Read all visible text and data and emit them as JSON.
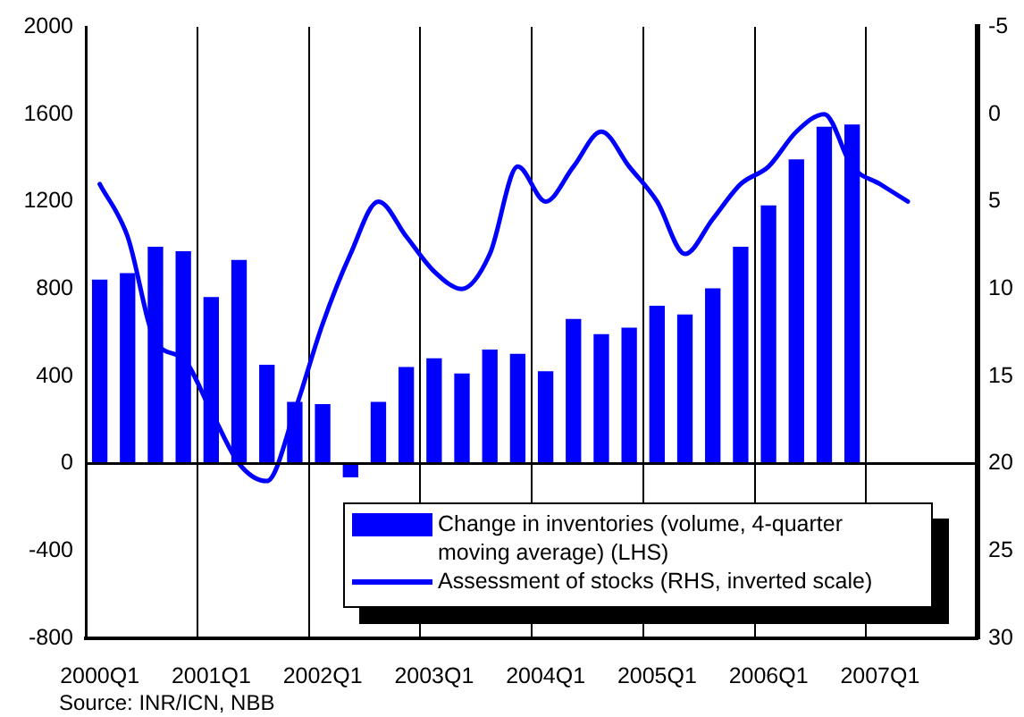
{
  "chart_data": {
    "type": "bar",
    "categories": [
      "2000Q1",
      null,
      null,
      null,
      "2001Q1",
      null,
      null,
      null,
      "2002Q1",
      null,
      null,
      null,
      "2003Q1",
      null,
      null,
      null,
      "2004Q1",
      null,
      null,
      null,
      "2005Q1",
      null,
      null,
      null,
      "2006Q1",
      null,
      null,
      null,
      "2007Q1",
      null,
      null,
      null
    ],
    "ylim": [
      -800,
      2000
    ],
    "yticks": [
      -800,
      -400,
      0,
      400,
      800,
      1200,
      1600,
      2000
    ],
    "y2lim": [
      30,
      -5
    ],
    "y2ticks": [
      -5,
      0,
      5,
      10,
      15,
      20,
      25,
      30
    ],
    "series": [
      {
        "name": "Change in inventories (volume, 4-quarter moving average) (LHS)",
        "color": "#0000ff",
        "values": [
          840,
          870,
          990,
          970,
          760,
          930,
          450,
          280,
          270,
          -60,
          280,
          440,
          480,
          410,
          520,
          500,
          420,
          660,
          590,
          620,
          720,
          680,
          800,
          990,
          1180,
          1390,
          1540,
          1550,
          null,
          null,
          null,
          null
        ]
      },
      {
        "name": "Assessment of stocks (RHS, inverted scale)",
        "type": "line",
        "axis": "y2",
        "color": "#0000ff",
        "values": [
          4,
          7,
          13,
          14,
          17,
          20,
          21,
          17,
          12,
          8,
          5,
          7,
          9,
          10,
          8,
          3,
          5,
          3,
          1,
          3,
          5,
          8,
          6,
          4,
          3,
          1,
          0,
          3,
          4,
          5,
          null,
          null
        ]
      }
    ],
    "ref_lines": [
      {
        "axis": "y",
        "value": 0,
        "color": "#000000"
      }
    ],
    "grid": "x",
    "legend": "bottom right",
    "marker": "none",
    "line_style": "solid",
    "annotations": [
      "Source: INR/ICN, NBB"
    ]
  }
}
